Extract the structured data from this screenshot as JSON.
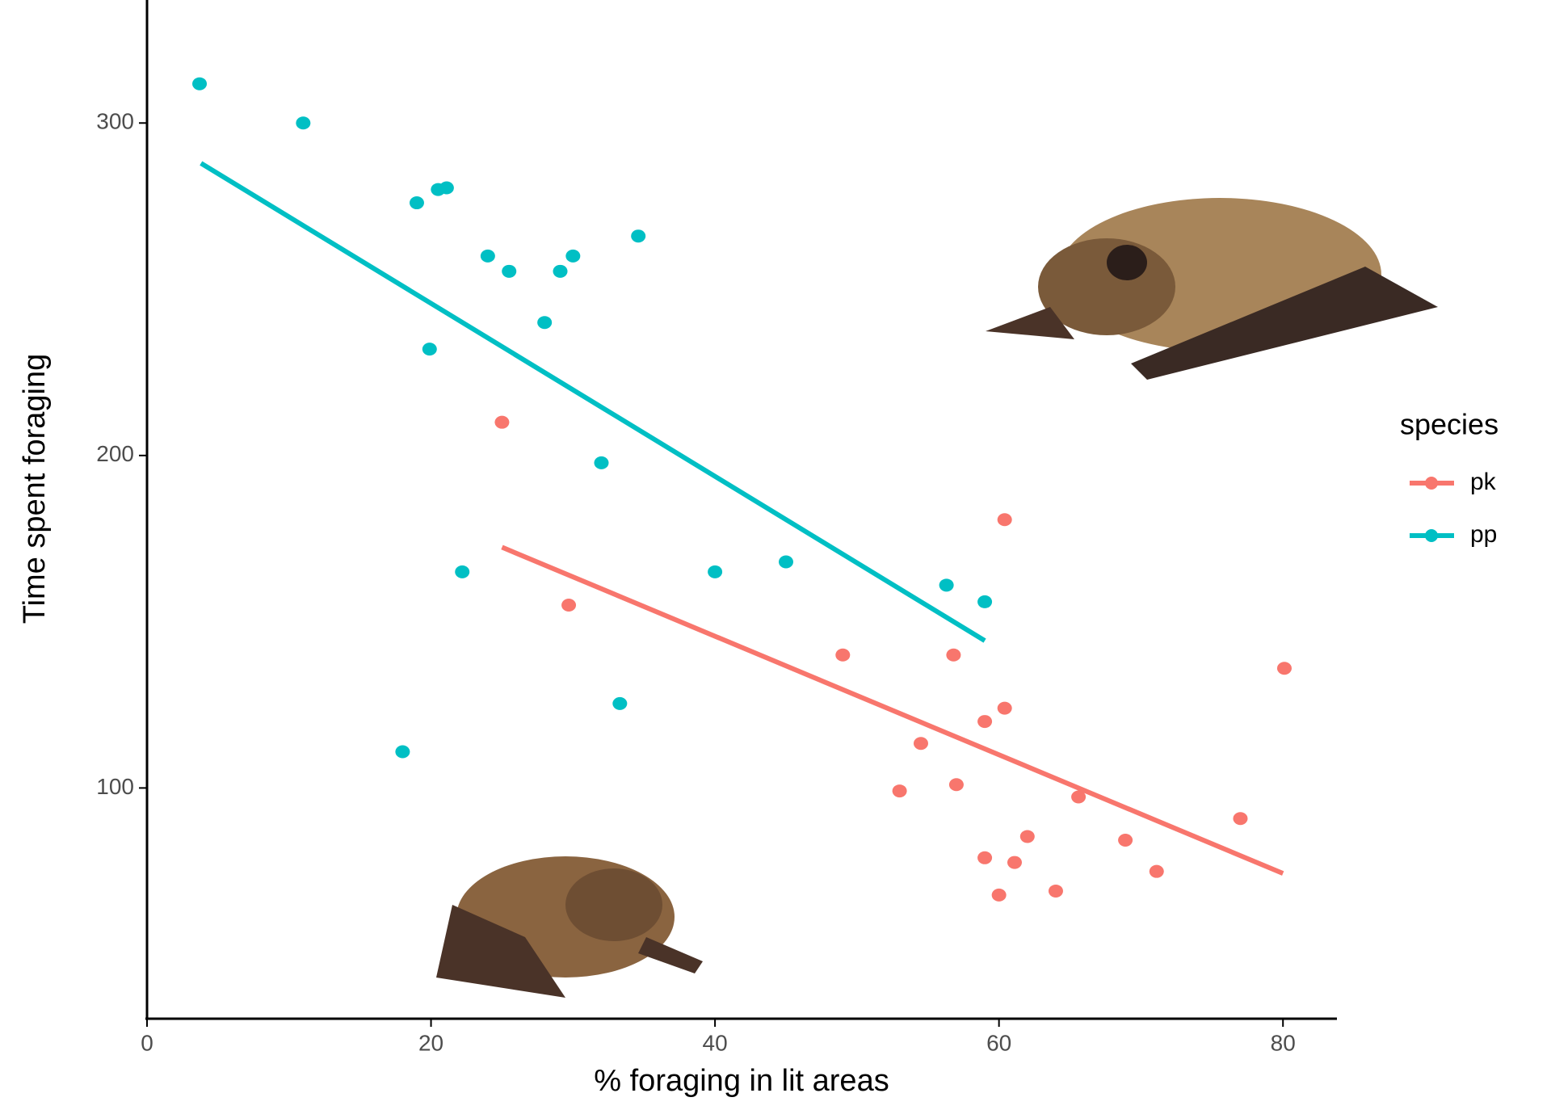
{
  "chart_data": {
    "type": "scatter",
    "x_label": "% foraging in lit areas",
    "y_label": "Time spent foraging",
    "xlim": [
      0,
      83.8
    ],
    "ylim": [
      30.6,
      337
    ],
    "xticks": [
      0,
      20,
      40,
      60,
      80
    ],
    "yticks": [
      100,
      200,
      300
    ],
    "legend_title": "species",
    "legend_position": "right",
    "series": [
      {
        "name": "pk",
        "color": "#F8766D",
        "x": [
          25.0,
          29.7,
          49.0,
          56.8,
          60.4,
          60.4,
          59.0,
          54.5,
          57.0,
          53.0,
          65.6,
          80.1,
          77.0,
          62.0,
          68.9,
          59.0,
          61.1,
          71.1,
          60.0,
          64.0
        ],
        "values": [
          210,
          155,
          140,
          140,
          180.7,
          124,
          120,
          113.4,
          101,
          99.1,
          97.3,
          136,
          90.8,
          85.4,
          84.3,
          79,
          77.6,
          74.9,
          67.8,
          69
        ],
        "fit": {
          "x": [
            25.0,
            80.0
          ],
          "values": [
            172.4,
            74.3
          ]
        }
      },
      {
        "name": "pp",
        "color": "#00BFC4",
        "x": [
          3.7,
          11.0,
          19.0,
          20.5,
          21.1,
          24.0,
          25.5,
          29.1,
          30.0,
          34.6,
          28.0,
          19.9,
          32.0,
          22.2,
          40.0,
          45.0,
          56.3,
          59.0,
          33.3,
          18.0
        ],
        "values": [
          311.8,
          300,
          276,
          280,
          280.5,
          260,
          255.4,
          255.4,
          260,
          266,
          240,
          232,
          197.8,
          165,
          165,
          168,
          161,
          156,
          125.4,
          110.9
        ],
        "fit": {
          "x": [
            3.8,
            59.0
          ],
          "values": [
            287.9,
            144.3
          ]
        }
      }
    ]
  }
}
